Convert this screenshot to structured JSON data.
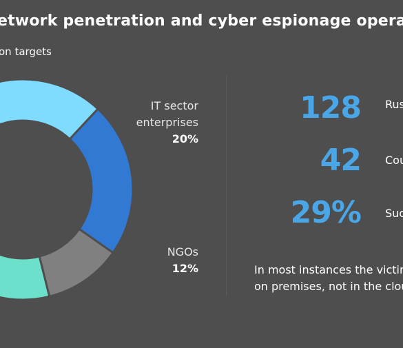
{
  "title": "etwork penetration and cyber espionage operations c",
  "subtitle": "on targets",
  "chart_data": {
    "type": "pie",
    "style": "donut",
    "segments": [
      {
        "label": "",
        "value": null,
        "color": "#7fdcff"
      },
      {
        "label_line1": "IT sector",
        "label_line2": "enterprises",
        "pct_text": "20%",
        "value": 20,
        "color": "#3279d3"
      },
      {
        "label_line1": "NGOs",
        "pct_text": "12%",
        "value": 12,
        "color": "#808080"
      },
      {
        "label": "",
        "value": null,
        "color": "#6de0cc"
      }
    ]
  },
  "stats": [
    {
      "value": "128",
      "label": "Rus"
    },
    {
      "value": "42",
      "label": "Cou"
    },
    {
      "value": "29%",
      "label": "Suc"
    }
  ],
  "note": {
    "line1": "In most instances the victims",
    "line2": "on premises, not in the cloud"
  }
}
